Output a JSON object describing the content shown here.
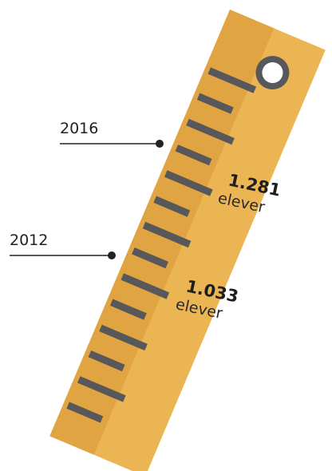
{
  "markers": [
    {
      "label": "2016"
    },
    {
      "label": "2012"
    }
  ],
  "figures": [
    {
      "number": "1.281",
      "unit": "elever"
    },
    {
      "number": "1.033",
      "unit": "elever"
    }
  ]
}
